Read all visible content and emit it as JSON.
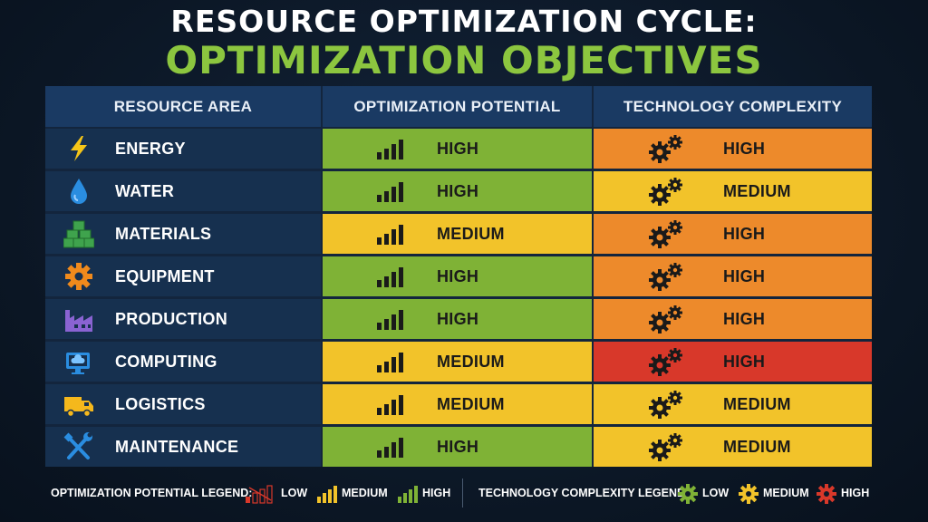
{
  "title": {
    "line1": "RESOURCE OPTIMIZATION CYCLE:",
    "line2": "OPTIMIZATION OBJECTIVES"
  },
  "table": {
    "headers": [
      "RESOURCE AREA",
      "OPTIMIZATION POTENTIAL",
      "TECHNOLOGY COMPLEXITY"
    ],
    "rows": [
      {
        "resource": "ENERGY",
        "icon": "lightning-bolt-icon",
        "potential": "HIGH",
        "complexity": "HIGH"
      },
      {
        "resource": "WATER",
        "icon": "water-drop-icon",
        "potential": "HIGH",
        "complexity": "MEDIUM"
      },
      {
        "resource": "MATERIALS",
        "icon": "stacked-cubes-icon",
        "potential": "MEDIUM",
        "complexity": "HIGH"
      },
      {
        "resource": "EQUIPMENT",
        "icon": "gear-icon",
        "potential": "HIGH",
        "complexity": "HIGH"
      },
      {
        "resource": "PRODUCTION",
        "icon": "factory-icon",
        "potential": "HIGH",
        "complexity": "HIGH"
      },
      {
        "resource": "COMPUTING",
        "icon": "cloud-computer-icon",
        "potential": "MEDIUM",
        "complexity": "HIGH"
      },
      {
        "resource": "LOGISTICS",
        "icon": "delivery-truck-icon",
        "potential": "MEDIUM",
        "complexity": "MEDIUM"
      },
      {
        "resource": "MAINTENANCE",
        "icon": "wrench-screwdriver-icon",
        "potential": "HIGH",
        "complexity": "MEDIUM"
      }
    ]
  },
  "legend": {
    "potential_title": "OPTIMIZATION POTENTIAL LEGEND:",
    "potential_items": [
      "LOW",
      "MEDIUM",
      "HIGH"
    ],
    "complexity_title": "TECHNOLOGY COMPLEXITY LEGEND:",
    "complexity_items": [
      "LOW",
      "MEDIUM",
      "HIGH"
    ]
  },
  "colors": {
    "green": "#7fb236",
    "yellow": "#f2c32a",
    "orange": "#ed8a2b",
    "red": "#d8382a",
    "header_blue": "#1a3a63",
    "title_green": "#8cc63f"
  }
}
